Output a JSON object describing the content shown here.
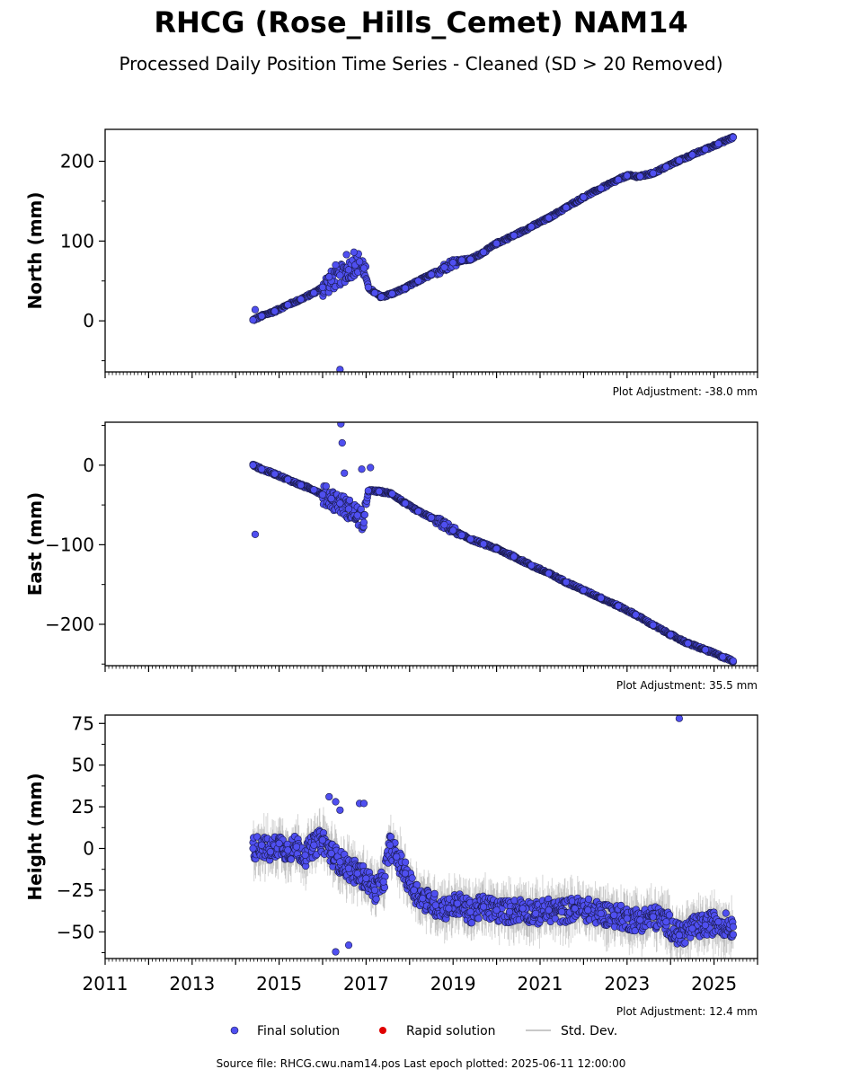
{
  "title": "RHCG (Rose_Hills_Cemet) NAM14",
  "subtitle": "Processed Daily Position Time Series - Cleaned (SD > 20 Removed)",
  "footer": "Source file: RHCG.cwu.nam14.pos  Last epoch plotted: 2025-06-11 12:00:00",
  "legend": {
    "final": "Final solution",
    "rapid": "Rapid solution",
    "std": "Std. Dev."
  },
  "colors": {
    "final_fill": "#4f4ff0",
    "final_edge": "#1a1a4a",
    "rapid": "#e00000",
    "std_dev": "#c8c8c8"
  },
  "chart_data": [
    {
      "type": "scatter",
      "ylabel": "North (mm)",
      "xlim": [
        2011,
        2026
      ],
      "ylim": [
        -64,
        240
      ],
      "yticks": [
        0,
        100,
        200
      ],
      "adjustment": "Plot Adjustment: -38.0 mm",
      "grid": false,
      "series": [
        {
          "name": "Final solution",
          "x": [
            2014.4,
            2014.6,
            2014.9,
            2015.2,
            2015.5,
            2015.8,
            2016.0,
            2016.2,
            2016.4,
            2016.6,
            2016.75,
            2016.85,
            2016.95,
            2017.05,
            2017.2,
            2017.35,
            2017.6,
            2017.9,
            2018.2,
            2018.5,
            2018.8,
            2019.0,
            2019.2,
            2019.4,
            2019.7,
            2020.0,
            2020.4,
            2020.8,
            2021.2,
            2021.6,
            2022.0,
            2022.4,
            2022.8,
            2023.0,
            2023.3,
            2023.6,
            2023.9,
            2024.2,
            2024.5,
            2024.8,
            2025.1,
            2025.44
          ],
          "y": [
            1,
            6,
            12,
            20,
            27,
            35,
            42,
            50,
            57,
            64,
            70,
            74,
            66,
            42,
            35,
            30,
            34,
            41,
            50,
            58,
            67,
            73,
            76,
            77,
            86,
            97,
            107,
            118,
            129,
            142,
            155,
            166,
            177,
            182,
            181,
            185,
            193,
            201,
            208,
            215,
            222,
            230
          ]
        }
      ],
      "outliers": {
        "x": [
          2014.45,
          2016.15,
          2016.3,
          2016.55,
          2016.72,
          2016.4
        ],
        "y": [
          14,
          55,
          70,
          83,
          86,
          -61
        ]
      }
    },
    {
      "type": "scatter",
      "ylabel": "East (mm)",
      "xlim": [
        2011,
        2026
      ],
      "ylim": [
        -252,
        54
      ],
      "yticks": [
        -200,
        -100,
        0
      ],
      "adjustment": "Plot Adjustment: 35.5 mm",
      "grid": false,
      "series": [
        {
          "name": "Final solution",
          "x": [
            2014.4,
            2014.6,
            2014.9,
            2015.2,
            2015.5,
            2015.8,
            2016.0,
            2016.2,
            2016.4,
            2016.6,
            2016.8,
            2016.95,
            2017.05,
            2017.3,
            2017.6,
            2017.9,
            2018.2,
            2018.5,
            2018.8,
            2019.0,
            2019.2,
            2019.4,
            2019.7,
            2020.0,
            2020.4,
            2020.8,
            2021.2,
            2021.6,
            2022.0,
            2022.4,
            2022.8,
            2023.2,
            2023.6,
            2024.0,
            2024.4,
            2024.8,
            2025.2,
            2025.44
          ],
          "y": [
            0,
            -5,
            -11,
            -18,
            -25,
            -31,
            -37,
            -42,
            -48,
            -55,
            -63,
            -72,
            -32,
            -33,
            -36,
            -48,
            -58,
            -66,
            -75,
            -82,
            -88,
            -93,
            -99,
            -105,
            -115,
            -126,
            -136,
            -147,
            -157,
            -167,
            -177,
            -188,
            -201,
            -213,
            -224,
            -232,
            -241,
            -246
          ]
        }
      ],
      "outliers": {
        "x": [
          2014.45,
          2016.42,
          2016.45,
          2016.5,
          2016.9,
          2017.1
        ],
        "y": [
          -87,
          52,
          28,
          -10,
          -5,
          -3
        ]
      }
    },
    {
      "type": "scatter",
      "ylabel": "Height (mm)",
      "xlim": [
        2011,
        2026
      ],
      "ylim": [
        -66,
        80
      ],
      "yticks": [
        -50,
        -25,
        0,
        25,
        50,
        75
      ],
      "xticks": [
        2011,
        2013,
        2015,
        2017,
        2019,
        2021,
        2023,
        2025
      ],
      "adjustment": "Plot Adjustment: 12.4 mm",
      "grid": false,
      "series": [
        {
          "name": "Final solution",
          "x": [
            2014.4,
            2014.6,
            2014.8,
            2015.0,
            2015.2,
            2015.4,
            2015.6,
            2015.8,
            2016.0,
            2016.2,
            2016.4,
            2016.6,
            2016.8,
            2017.0,
            2017.2,
            2017.4,
            2017.55,
            2017.7,
            2017.9,
            2018.1,
            2018.3,
            2018.6,
            2018.9,
            2019.1,
            2019.4,
            2019.7,
            2020.0,
            2020.3,
            2020.6,
            2020.9,
            2021.2,
            2021.5,
            2021.8,
            2022.1,
            2022.4,
            2022.7,
            2023.0,
            2023.3,
            2023.6,
            2023.9,
            2024.2,
            2024.5,
            2024.8,
            2025.1,
            2025.44
          ],
          "y": [
            0,
            2,
            -2,
            3,
            -1,
            1,
            -4,
            2,
            5,
            -3,
            -8,
            -12,
            -15,
            -18,
            -25,
            -20,
            2,
            -5,
            -15,
            -25,
            -30,
            -34,
            -36,
            -33,
            -38,
            -35,
            -37,
            -38,
            -36,
            -39,
            -37,
            -38,
            -36,
            -37,
            -39,
            -40,
            -42,
            -43,
            -41,
            -44,
            -52,
            -48,
            -46,
            -44,
            -47
          ]
        }
      ],
      "outliers": {
        "x": [
          2016.15,
          2016.3,
          2016.4,
          2016.85,
          2016.95,
          2016.3,
          2016.6,
          2024.2
        ],
        "y": [
          31,
          28,
          23,
          27,
          27,
          -62,
          -58,
          78
        ]
      }
    }
  ]
}
